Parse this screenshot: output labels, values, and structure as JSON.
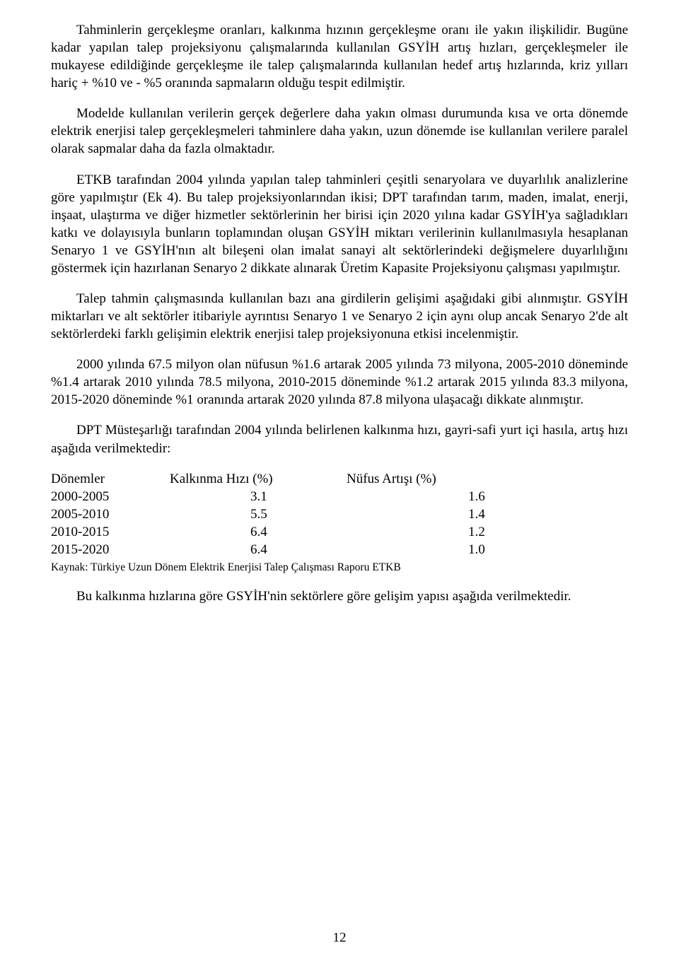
{
  "paragraphs": {
    "p1": "Tahminlerin gerçekleşme oranları, kalkınma hızının gerçekleşme oranı ile yakın ilişkilidir. Bugüne kadar yapılan talep projeksiyonu çalışmalarında kullanılan GSYİH artış hızları, gerçekleşmeler ile mukayese edildiğinde gerçekleşme ile talep çalışmalarında kullanılan hedef artış hızlarında, kriz yılları hariç + %10 ve - %5 oranında sapmaların olduğu tespit edilmiştir.",
    "p2": "Modelde kullanılan verilerin gerçek değerlere daha yakın olması durumunda kısa ve orta dönemde elektrik enerjisi talep gerçekleşmeleri tahminlere daha yakın, uzun dönemde ise kullanılan verilere paralel olarak sapmalar daha da fazla olmaktadır.",
    "p3": "ETKB tarafından 2004 yılında yapılan talep tahminleri çeşitli senaryolara ve duyarlılık analizlerine göre yapılmıştır (Ek 4). Bu talep projeksiyonlarından ikisi; DPT tarafından tarım, maden, imalat, enerji, inşaat, ulaştırma ve diğer hizmetler sektörlerinin her birisi için 2020 yılına kadar GSYİH'ya sağladıkları katkı ve dolayısıyla bunların toplamından oluşan GSYİH miktarı verilerinin kullanılmasıyla hesaplanan Senaryo 1 ve GSYİH'nın alt bileşeni olan imalat sanayi alt sektörlerindeki değişmelere duyarlılığını göstermek için hazırlanan Senaryo 2 dikkate alınarak Üretim Kapasite Projeksiyonu çalışması yapılmıştır.",
    "p4": "Talep tahmin çalışmasında kullanılan bazı ana girdilerin gelişimi aşağıdaki gibi alınmıştır. GSYİH miktarları ve alt sektörler itibariyle ayrıntısı Senaryo 1 ve  Senaryo 2 için aynı olup ancak Senaryo 2'de alt sektörlerdeki farklı gelişimin elektrik enerjisi talep projeksiyonuna etkisi incelenmiştir.",
    "p5": "2000 yılında 67.5 milyon olan nüfusun %1.6 artarak 2005 yılında 73 milyona, 2005-2010 döneminde %1.4 artarak 2010 yılında 78.5  milyona, 2010-2015 döneminde %1.2 artarak 2015 yılında 83.3 milyona, 2015-2020 döneminde %1 oranında artarak 2020 yılında 87.8 milyona ulaşacağı dikkate alınmıştır.",
    "p6": "DPT Müsteşarlığı tarafından 2004 yılında belirlenen kalkınma hızı, gayri-safi yurt içi hasıla, artış hızı aşağıda verilmektedir:",
    "p7": "Bu kalkınma hızlarına göre GSYİH'nin sektörlere göre gelişim yapısı aşağıda verilmektedir."
  },
  "table": {
    "headers": {
      "period": "Dönemler",
      "growth": "Kalkınma Hızı (%)",
      "population": "Nüfus Artışı (%)"
    },
    "rows": [
      {
        "period": "2000-2005",
        "growth": "3.1",
        "population": "1.6"
      },
      {
        "period": "2005-2010",
        "growth": "5.5",
        "population": "1.4"
      },
      {
        "period": "2010-2015",
        "growth": "6.4",
        "population": "1.2"
      },
      {
        "period": "2015-2020",
        "growth": "6.4",
        "population": "1.0"
      }
    ]
  },
  "source": "Kaynak: Türkiye Uzun Dönem Elektrik Enerjisi Talep Çalışması Raporu ETKB",
  "pageNumber": "12"
}
